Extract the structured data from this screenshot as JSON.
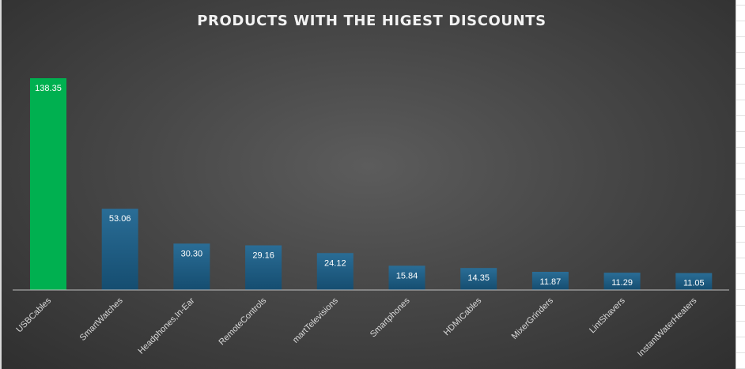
{
  "chart_data": {
    "type": "bar",
    "title": "PRODUCTS WITH THE HIGEST DISCOUNTS",
    "categories": [
      "USBCables",
      "SmartWatches",
      "Headphones,In-Ear",
      "RemoteControls",
      "martTelevisions",
      "Smartphones",
      "HDMICables",
      "MixerGrinders",
      "LintShavers",
      "InstantWaterHeaters"
    ],
    "values": [
      138.35,
      53.06,
      30.3,
      29.16,
      24.12,
      15.84,
      14.35,
      11.87,
      11.29,
      11.05
    ],
    "value_labels": [
      "138.35",
      "53.06",
      "30.30",
      "29.16",
      "24.12",
      "15.84",
      "14.35",
      "11.87",
      "11.29",
      "11.05"
    ],
    "ylim": [
      0,
      140
    ],
    "grid": false,
    "legend": "none",
    "colors": {
      "highlight": "#00b050",
      "bar_top": "#2a6d96",
      "bar_bottom": "#154d70",
      "axis": "#bfbfbf"
    }
  }
}
